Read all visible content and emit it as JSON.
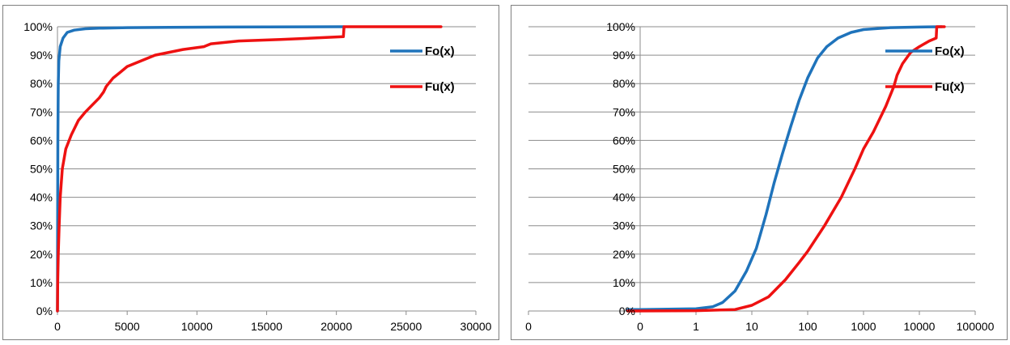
{
  "colors": {
    "fo": "#1f73bb",
    "fu": "#ee1111",
    "grid": "#8c8c8c",
    "axis": "#8c8c8c"
  },
  "chart_data": [
    {
      "type": "line",
      "xscale": "linear",
      "xlim": [
        0,
        30000
      ],
      "ylim": [
        0,
        100
      ],
      "x_ticks": [
        0,
        5000,
        10000,
        15000,
        20000,
        25000,
        30000
      ],
      "y_ticks": [
        0,
        10,
        20,
        30,
        40,
        50,
        60,
        70,
        80,
        90,
        100
      ],
      "y_tick_suffix": "%",
      "grid": "horizontal",
      "legend_position": "right",
      "series": [
        {
          "name": "Fo(x)",
          "color": "#1f73bb",
          "points": [
            [
              0,
              0
            ],
            [
              10,
              30
            ],
            [
              30,
              60
            ],
            [
              60,
              80
            ],
            [
              100,
              88
            ],
            [
              200,
              93
            ],
            [
              400,
              96
            ],
            [
              700,
              98
            ],
            [
              1200,
              98.8
            ],
            [
              2000,
              99.3
            ],
            [
              3000,
              99.5
            ],
            [
              5000,
              99.7
            ],
            [
              8000,
              99.8
            ],
            [
              12000,
              99.9
            ],
            [
              20500,
              100
            ]
          ]
        },
        {
          "name": "Fu(x)",
          "color": "#ee1111",
          "points": [
            [
              0,
              0
            ],
            [
              20,
              10
            ],
            [
              60,
              20
            ],
            [
              120,
              30
            ],
            [
              200,
              40
            ],
            [
              350,
              50
            ],
            [
              600,
              57
            ],
            [
              1000,
              62
            ],
            [
              1500,
              67
            ],
            [
              2000,
              70
            ],
            [
              2600,
              73
            ],
            [
              3000,
              75
            ],
            [
              3300,
              77
            ],
            [
              3500,
              79
            ],
            [
              4000,
              82
            ],
            [
              4500,
              84
            ],
            [
              5000,
              86
            ],
            [
              6000,
              88
            ],
            [
              7000,
              90
            ],
            [
              8000,
              91
            ],
            [
              9000,
              92
            ],
            [
              10500,
              93
            ],
            [
              11000,
              94
            ],
            [
              13000,
              95
            ],
            [
              16000,
              95.5
            ],
            [
              20500,
              96.5
            ],
            [
              20550,
              100
            ],
            [
              27500,
              100
            ]
          ]
        }
      ]
    },
    {
      "type": "line",
      "xscale": "log",
      "xlim": [
        0.001,
        100000
      ],
      "ylim": [
        0,
        100
      ],
      "x_ticks": [
        0.001,
        0.1,
        1,
        10,
        100,
        1000,
        10000,
        100000
      ],
      "x_tick_labels": [
        "0",
        "0",
        "1",
        "10",
        "100",
        "1000",
        "10000",
        "100000"
      ],
      "y_ticks": [
        0,
        10,
        20,
        30,
        40,
        50,
        60,
        70,
        80,
        90,
        100
      ],
      "y_tick_suffix": "%",
      "grid": "horizontal",
      "legend_position": "top-right",
      "series": [
        {
          "name": "Fo(x)",
          "color": "#1f73bb",
          "points": [
            [
              0.06,
              0.5
            ],
            [
              0.1,
              0.5
            ],
            [
              1,
              0.8
            ],
            [
              2,
              1.5
            ],
            [
              3,
              3
            ],
            [
              5,
              7
            ],
            [
              8,
              14
            ],
            [
              12,
              22
            ],
            [
              18,
              34
            ],
            [
              25,
              45
            ],
            [
              35,
              55
            ],
            [
              50,
              65
            ],
            [
              70,
              74
            ],
            [
              100,
              82
            ],
            [
              150,
              89
            ],
            [
              220,
              93
            ],
            [
              350,
              96
            ],
            [
              600,
              98
            ],
            [
              1000,
              99
            ],
            [
              3000,
              99.7
            ],
            [
              10000,
              99.9
            ],
            [
              25000,
              100
            ]
          ]
        },
        {
          "name": "Fu(x)",
          "color": "#ee1111",
          "points": [
            [
              0.06,
              0
            ],
            [
              1,
              0.1
            ],
            [
              5,
              0.5
            ],
            [
              10,
              2
            ],
            [
              20,
              5
            ],
            [
              40,
              11
            ],
            [
              70,
              17
            ],
            [
              100,
              21
            ],
            [
              200,
              30
            ],
            [
              400,
              40
            ],
            [
              700,
              50
            ],
            [
              1000,
              57
            ],
            [
              1500,
              63
            ],
            [
              2500,
              72
            ],
            [
              3500,
              79
            ],
            [
              4000,
              83
            ],
            [
              5000,
              87
            ],
            [
              7000,
              91
            ],
            [
              10000,
              93
            ],
            [
              15000,
              95
            ],
            [
              20000,
              96
            ],
            [
              20500,
              100
            ],
            [
              28000,
              100
            ]
          ]
        }
      ]
    }
  ]
}
